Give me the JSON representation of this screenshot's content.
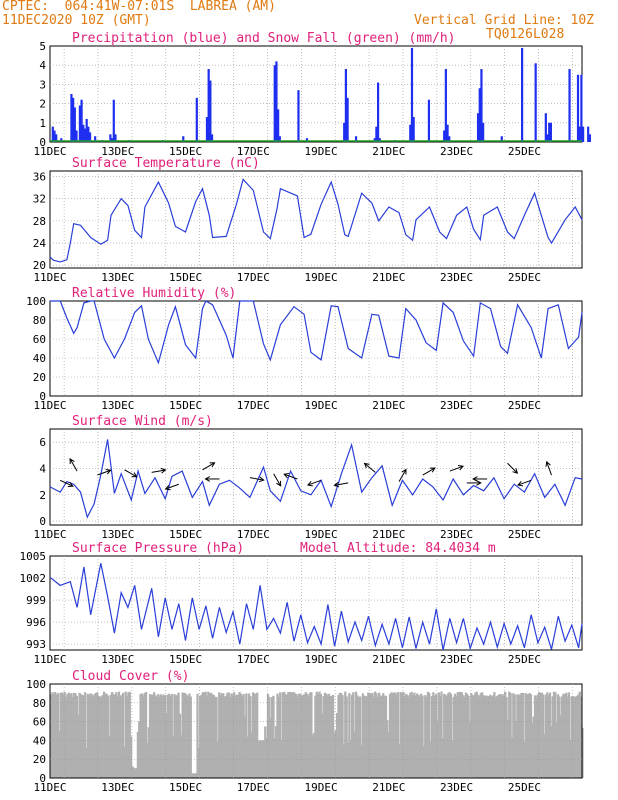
{
  "header": {
    "station": "CPTEC:  064:41W-07:01S  LABREA (AM)",
    "date": "11DEC2020 10Z (GMT)",
    "grid_note": "Vertical Grid Line: 10Z",
    "run_code": "TQ0126L028"
  },
  "colors": {
    "header": "#e07a10",
    "title": "#e0207a",
    "line": "#2a3ed8",
    "precip": "#1f2ff0",
    "snow": "#20a020",
    "cloud": "#b0b0b0"
  },
  "x_axis": {
    "labels": [
      "11DEC",
      "13DEC",
      "15DEC",
      "17DEC",
      "19DEC",
      "21DEC",
      "23DEC",
      "25DEC"
    ],
    "start_day": 11,
    "end_day": 26
  },
  "chart_data": [
    {
      "type": "bar",
      "title": "Precipitation (blue) and Snow Fall (green) (mm/h)",
      "ylim": [
        0,
        5
      ],
      "yticks": [
        0,
        1,
        2,
        3,
        4,
        5
      ],
      "series": [
        {
          "name": "Precipitation",
          "x": [
            11.05,
            11.1,
            11.15,
            11.3,
            11.6,
            11.65,
            11.7,
            11.75,
            11.85,
            11.9,
            11.95,
            12.0,
            12.05,
            12.1,
            12.15,
            12.3,
            12.5,
            12.75,
            12.8,
            12.85,
            12.9,
            13.3,
            14.3,
            14.9,
            15.3,
            15.6,
            15.65,
            15.7,
            15.75,
            17.6,
            17.65,
            17.7,
            17.75,
            18.3,
            18.55,
            19.65,
            19.7,
            19.75,
            20.0,
            20.55,
            20.6,
            20.65,
            20.7,
            21.15,
            21.6,
            21.65,
            21.7,
            22.15,
            22.6,
            22.65,
            22.7,
            22.75,
            23.6,
            23.65,
            23.7,
            23.75,
            24.3,
            24.9,
            25.3,
            25.6,
            25.65,
            25.7,
            25.75,
            26.3,
            26.55,
            26.6,
            26.65,
            26.7,
            26.85,
            26.9
          ],
          "values": [
            0.8,
            0.6,
            0.4,
            0.2,
            2.5,
            2.3,
            1.8,
            0.6,
            1.9,
            2.2,
            0.9,
            0.7,
            1.2,
            0.8,
            0.5,
            0.3,
            0.1,
            0.4,
            0.2,
            2.2,
            0.4,
            0.1,
            0.1,
            0.3,
            2.3,
            1.3,
            3.8,
            3.2,
            0.4,
            4.0,
            4.2,
            1.7,
            0.3,
            2.7,
            0.2,
            1.0,
            3.8,
            2.3,
            0.3,
            0.2,
            0.8,
            3.1,
            0.2,
            0.1,
            0.9,
            4.9,
            1.3,
            2.2,
            0.6,
            3.8,
            0.9,
            0.3,
            1.5,
            2.8,
            3.8,
            1.0,
            0.3,
            4.9,
            4.1,
            1.5,
            0.4,
            1.0,
            1.0,
            3.8,
            3.5,
            0.8,
            3.5,
            0.8,
            0.8,
            0.4
          ]
        },
        {
          "name": "Snow Fall",
          "x": [
            11,
            26.7
          ],
          "values": [
            0,
            0
          ]
        }
      ]
    },
    {
      "type": "line",
      "title": "Surface Temperature (nC)",
      "ylim": [
        19.5,
        37
      ],
      "yticks": [
        20,
        24,
        28,
        32,
        36
      ],
      "x": [
        11,
        11.1,
        11.3,
        11.5,
        11.6,
        11.7,
        11.9,
        12.2,
        12.5,
        12.7,
        12.8,
        13.1,
        13.3,
        13.5,
        13.7,
        13.8,
        14.2,
        14.5,
        14.7,
        15.0,
        15.3,
        15.5,
        15.7,
        15.8,
        16.2,
        16.5,
        16.7,
        17.0,
        17.3,
        17.5,
        17.7,
        17.8,
        18.3,
        18.5,
        18.7,
        19.0,
        19.3,
        19.5,
        19.7,
        19.8,
        20.2,
        20.5,
        20.7,
        21.0,
        21.3,
        21.5,
        21.7,
        21.8,
        22.2,
        22.5,
        22.7,
        23.0,
        23.3,
        23.5,
        23.7,
        23.8,
        24.2,
        24.5,
        24.7,
        25.0,
        25.3,
        25.5,
        25.7,
        25.8,
        26.2,
        26.5,
        26.7
      ],
      "values": [
        21.5,
        20.9,
        20.6,
        21,
        24,
        27.5,
        27.2,
        25,
        23.8,
        24.5,
        29,
        32,
        30.8,
        26.3,
        25,
        30.5,
        35,
        31.2,
        27,
        26,
        31.5,
        33.8,
        29,
        25,
        25.2,
        31,
        35.5,
        33.5,
        26,
        24.8,
        30.2,
        33.8,
        32.5,
        25,
        25.6,
        31,
        35,
        31,
        25.5,
        25.2,
        33,
        31.2,
        28,
        30.5,
        29.5,
        25.5,
        24.5,
        28.2,
        30.5,
        26,
        24.8,
        29,
        30.5,
        26.5,
        24.6,
        29,
        30.5,
        26,
        24.8,
        29,
        33,
        29,
        25,
        24,
        28.2,
        30.5,
        28.2
      ]
    },
    {
      "type": "line",
      "title": "Relative Humidity (%)",
      "ylim": [
        0,
        100
      ],
      "yticks": [
        0,
        20,
        40,
        60,
        80,
        100
      ],
      "x": [
        11,
        11.3,
        11.5,
        11.7,
        11.8,
        12.0,
        12.2,
        12.3,
        12.6,
        12.9,
        13.2,
        13.5,
        13.7,
        13.9,
        14.2,
        14.5,
        14.7,
        15.0,
        15.3,
        15.5,
        15.6,
        15.8,
        16.2,
        16.4,
        16.6,
        17.0,
        17.3,
        17.5,
        17.8,
        18.2,
        18.5,
        18.7,
        19.0,
        19.3,
        19.5,
        19.8,
        20.2,
        20.5,
        20.7,
        21.0,
        21.3,
        21.5,
        21.8,
        22.1,
        22.4,
        22.6,
        22.9,
        23.2,
        23.5,
        23.7,
        24.0,
        24.3,
        24.5,
        24.8,
        25.2,
        25.5,
        25.7,
        26.0,
        26.3,
        26.6,
        26.7
      ],
      "values": [
        100,
        100,
        82,
        66,
        72,
        98,
        100,
        100,
        60,
        40,
        60,
        88,
        95,
        60,
        35,
        75,
        94,
        54,
        40,
        92,
        100,
        96,
        64,
        40,
        100,
        100,
        55,
        38,
        75,
        94,
        86,
        46,
        38,
        95,
        94,
        50,
        40,
        86,
        85,
        42,
        40,
        92,
        80,
        56,
        48,
        98,
        88,
        58,
        42,
        98,
        92,
        52,
        45,
        96,
        72,
        40,
        92,
        96,
        50,
        62,
        88
      ]
    },
    {
      "type": "line",
      "title": "Surface Wind (m/s)",
      "ylim": [
        -0.3,
        7.0
      ],
      "yticks": [
        0,
        2,
        4,
        6
      ],
      "x": [
        11,
        11.3,
        11.5,
        11.7,
        11.9,
        12.1,
        12.3,
        12.5,
        12.7,
        12.9,
        13.1,
        13.4,
        13.6,
        13.8,
        14.1,
        14.4,
        14.6,
        14.9,
        15.2,
        15.5,
        15.7,
        16.0,
        16.3,
        16.6,
        16.9,
        17.3,
        17.5,
        17.8,
        18.1,
        18.4,
        18.7,
        19.0,
        19.3,
        19.6,
        19.9,
        20.2,
        20.5,
        20.8,
        21.1,
        21.4,
        21.7,
        22.0,
        22.3,
        22.6,
        22.9,
        23.2,
        23.5,
        23.8,
        24.1,
        24.4,
        24.7,
        25.0,
        25.3,
        25.6,
        25.9,
        26.2,
        26.5,
        26.7
      ],
      "values": [
        2.6,
        2.2,
        3.0,
        2.8,
        2.2,
        0.3,
        1.3,
        3.5,
        6.2,
        2.1,
        3.6,
        1.6,
        3.8,
        2.1,
        3.3,
        1.7,
        3.4,
        3.8,
        1.8,
        3.0,
        1.2,
        2.8,
        3.1,
        2.5,
        1.8,
        4.1,
        2.3,
        1.5,
        3.8,
        2.3,
        2.0,
        3.1,
        1.1,
        3.6,
        5.8,
        2.2,
        3.3,
        4.2,
        1.2,
        3.1,
        2.0,
        3.2,
        2.6,
        1.6,
        3.2,
        2.0,
        2.7,
        2.3,
        3.3,
        1.7,
        2.8,
        2.2,
        3.6,
        1.8,
        2.8,
        1.2,
        3.3,
        3.2
      ]
    },
    {
      "type": "line",
      "title": "Surface Pressure (hPa)",
      "annotation": "Model Altitude: 84.4034 m",
      "ylim": [
        992.2,
        1005
      ],
      "yticks": [
        993,
        996,
        999,
        1002,
        1005
      ],
      "ytick_labels": [
        "993",
        "996",
        "999",
        "1002",
        "1005"
      ],
      "x": [
        11,
        11.3,
        11.6,
        11.8,
        12.0,
        12.2,
        12.5,
        12.7,
        12.9,
        13.1,
        13.3,
        13.5,
        13.7,
        14.0,
        14.2,
        14.4,
        14.6,
        14.8,
        15.0,
        15.2,
        15.4,
        15.6,
        15.8,
        16.0,
        16.2,
        16.4,
        16.6,
        16.8,
        17.0,
        17.2,
        17.4,
        17.6,
        17.8,
        18.0,
        18.2,
        18.4,
        18.6,
        18.8,
        19.0,
        19.2,
        19.4,
        19.6,
        19.8,
        20.0,
        20.2,
        20.4,
        20.6,
        20.8,
        21.0,
        21.2,
        21.4,
        21.6,
        21.8,
        22.0,
        22.2,
        22.4,
        22.6,
        22.8,
        23.0,
        23.2,
        23.4,
        23.6,
        23.8,
        24.0,
        24.2,
        24.4,
        24.6,
        24.8,
        25.0,
        25.2,
        25.4,
        25.6,
        25.8,
        26.0,
        26.2,
        26.4,
        26.6,
        26.7
      ],
      "values": [
        1002.1,
        1001,
        1001.5,
        998,
        1003.5,
        997,
        1004,
        999.5,
        994.5,
        1000,
        998,
        1001,
        995,
        1000.6,
        994,
        999.3,
        995,
        998.5,
        993.5,
        999.3,
        995,
        998.2,
        993.8,
        998,
        994.6,
        997.4,
        993,
        998.5,
        995,
        1001,
        995,
        996.5,
        994.5,
        998.7,
        993.4,
        997,
        993.2,
        995.4,
        993,
        998.4,
        992.7,
        997.5,
        993.3,
        996,
        993.5,
        996.8,
        992.8,
        995.7,
        993,
        996.5,
        992.5,
        996.7,
        992.4,
        996,
        993,
        997.8,
        992.2,
        996.5,
        993.2,
        996.5,
        992.4,
        995.2,
        993,
        996,
        992.6,
        995.8,
        993,
        995.5,
        992.5,
        997,
        993.2,
        995.3,
        992.3,
        996.8,
        993.4,
        995.6,
        992.5,
        995.8
      ]
    },
    {
      "type": "bar",
      "title": "Cloud Cover (%)",
      "ylim": [
        0,
        100
      ],
      "yticks": [
        0,
        20,
        40,
        60,
        80,
        100
      ]
    }
  ]
}
